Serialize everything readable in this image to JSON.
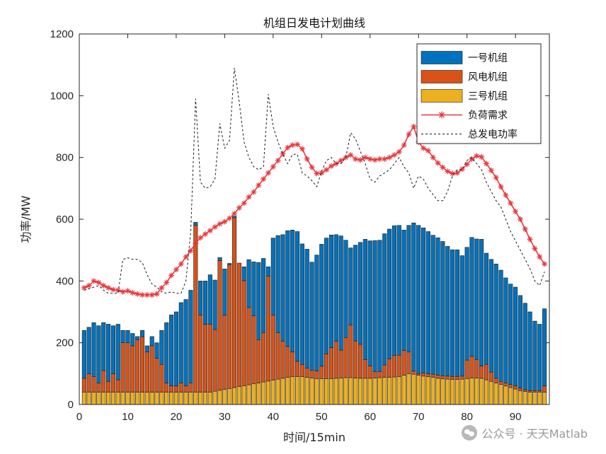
{
  "chart_data": {
    "type": "bar",
    "stacked": true,
    "title": "机组日发电计划曲线",
    "xlabel": "时间/15min",
    "ylabel": "功率/MW",
    "xlim": [
      0,
      97
    ],
    "ylim": [
      0,
      1200
    ],
    "xticks": [
      0,
      10,
      20,
      30,
      40,
      50,
      60,
      70,
      80,
      90
    ],
    "yticks": [
      0,
      200,
      400,
      600,
      800,
      1000,
      1200
    ],
    "legend_position": "top-right",
    "x": [
      1,
      2,
      3,
      4,
      5,
      6,
      7,
      8,
      9,
      10,
      11,
      12,
      13,
      14,
      15,
      16,
      17,
      18,
      19,
      20,
      21,
      22,
      23,
      24,
      25,
      26,
      27,
      28,
      29,
      30,
      31,
      32,
      33,
      34,
      35,
      36,
      37,
      38,
      39,
      40,
      41,
      42,
      43,
      44,
      45,
      46,
      47,
      48,
      49,
      50,
      51,
      52,
      53,
      54,
      55,
      56,
      57,
      58,
      59,
      60,
      61,
      62,
      63,
      64,
      65,
      66,
      67,
      68,
      69,
      70,
      71,
      72,
      73,
      74,
      75,
      76,
      77,
      78,
      79,
      80,
      81,
      82,
      83,
      84,
      85,
      86,
      87,
      88,
      89,
      90,
      91,
      92,
      93,
      94,
      95,
      96
    ],
    "series": [
      {
        "name": "三号机组",
        "kind": "bar",
        "color": "#EDB120",
        "values": [
          40,
          40,
          40,
          40,
          40,
          40,
          40,
          40,
          40,
          40,
          40,
          40,
          40,
          40,
          40,
          40,
          40,
          40,
          40,
          40,
          40,
          40,
          40,
          40,
          40,
          40,
          40,
          43,
          46,
          49,
          52,
          55,
          58,
          61,
          64,
          67,
          70,
          73,
          76,
          79,
          82,
          85,
          88,
          90,
          90,
          90,
          88,
          86,
          84,
          84,
          84,
          84,
          85,
          86,
          87,
          87,
          86,
          85,
          85,
          85,
          86,
          87,
          88,
          88,
          89,
          90,
          95,
          100,
          98,
          95,
          92,
          90,
          88,
          85,
          83,
          82,
          81,
          81,
          82,
          84,
          86,
          86,
          85,
          80,
          75,
          70,
          65,
          60,
          55,
          50,
          45,
          42,
          40,
          40,
          40,
          40
        ]
      },
      {
        "name": "风电机组",
        "kind": "bar",
        "color": "#D95319",
        "values": [
          45,
          60,
          50,
          30,
          70,
          35,
          60,
          40,
          160,
          160,
          150,
          170,
          180,
          130,
          150,
          110,
          90,
          30,
          20,
          20,
          30,
          20,
          30,
          540,
          250,
          220,
          220,
          200,
          420,
          240,
          400,
          550,
          400,
          340,
          250,
          220,
          140,
          160,
          340,
          210,
          150,
          120,
          100,
          80,
          50,
          40,
          30,
          25,
          25,
          40,
          80,
          100,
          120,
          90,
          130,
          170,
          120,
          110,
          60,
          40,
          20,
          20,
          40,
          60,
          70,
          70,
          80,
          70,
          10,
          5,
          10,
          10,
          10,
          10,
          10,
          10,
          10,
          10,
          10,
          60,
          70,
          60,
          40,
          50,
          30,
          15,
          10,
          10,
          10,
          10,
          8,
          6,
          5,
          5,
          5,
          20
        ]
      },
      {
        "name": "一号机组",
        "kind": "bar",
        "color": "#0072BD",
        "values": [
          155,
          150,
          175,
          185,
          155,
          185,
          155,
          180,
          40,
          40,
          40,
          10,
          20,
          20,
          30,
          50,
          110,
          195,
          230,
          240,
          260,
          280,
          300,
          10,
          110,
          140,
          160,
          160,
          10,
          150,
          5,
          5,
          0,
          45,
          155,
          175,
          250,
          240,
          30,
          250,
          315,
          345,
          375,
          395,
          420,
          390,
          385,
          350,
          375,
          395,
          375,
          365,
          345,
          370,
          315,
          250,
          310,
          330,
          390,
          405,
          425,
          425,
          425,
          420,
          420,
          420,
          390,
          410,
          480,
          480,
          470,
          460,
          450,
          445,
          435,
          420,
          410,
          410,
          390,
          365,
          385,
          390,
          410,
          360,
          365,
          370,
          360,
          340,
          325,
          320,
          300,
          280,
          255,
          225,
          215,
          250
        ]
      },
      {
        "name": "负荷需求",
        "kind": "line",
        "color": "#E8383D",
        "marker": "*",
        "values": [
          378,
          385,
          400,
          395,
          385,
          378,
          372,
          370,
          365,
          368,
          362,
          358,
          355,
          355,
          355,
          358,
          378,
          395,
          418,
          437,
          455,
          478,
          498,
          522,
          540,
          552,
          563,
          575,
          585,
          592,
          603,
          618,
          637,
          652,
          672,
          688,
          710,
          730,
          750,
          770,
          790,
          812,
          832,
          840,
          842,
          828,
          795,
          768,
          748,
          750,
          760,
          772,
          780,
          790,
          800,
          808,
          795,
          792,
          800,
          795,
          792,
          795,
          795,
          800,
          808,
          818,
          840,
          875,
          900,
          850,
          830,
          822,
          800,
          782,
          768,
          755,
          748,
          750,
          762,
          778,
          795,
          805,
          802,
          780,
          758,
          735,
          705,
          678,
          652,
          625,
          600,
          568,
          535,
          505,
          478,
          455
        ]
      },
      {
        "name": "总发电功率",
        "kind": "line",
        "color": "#1A1A1A",
        "dash": "3,3",
        "values": [
          370,
          375,
          380,
          385,
          370,
          360,
          360,
          360,
          470,
          475,
          470,
          470,
          460,
          420,
          390,
          380,
          365,
          360,
          365,
          360,
          360,
          400,
          560,
          990,
          720,
          700,
          705,
          730,
          910,
          830,
          855,
          1090,
          980,
          850,
          800,
          770,
          760,
          770,
          1005,
          900,
          850,
          810,
          780,
          810,
          810,
          750,
          740,
          725,
          705,
          755,
          790,
          800,
          780,
          780,
          800,
          880,
          860,
          820,
          780,
          730,
          720,
          740,
          750,
          760,
          780,
          800,
          770,
          750,
          700,
          740,
          730,
          700,
          680,
          660,
          660,
          690,
          740,
          760,
          760,
          790,
          800,
          780,
          760,
          720,
          690,
          660,
          640,
          600,
          560,
          530,
          500,
          470,
          440,
          400,
          385,
          430
        ]
      }
    ]
  },
  "watermark": {
    "text": "公众号 · 天天Matlab",
    "icon": "wechat-icon"
  }
}
